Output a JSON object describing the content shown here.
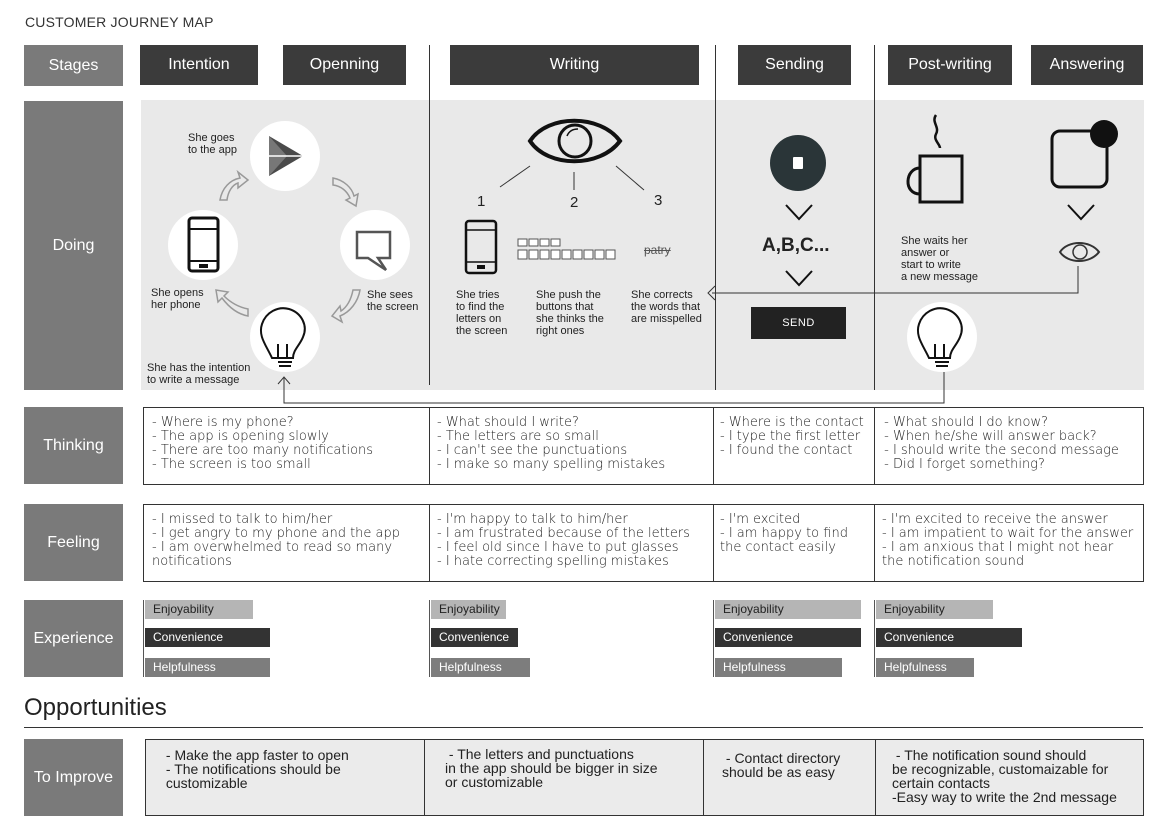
{
  "title": "CUSTOMER JOURNEY MAP",
  "rows": {
    "stages": "Stages",
    "doing": "Doing",
    "thinking": "Thinking",
    "feeling": "Feeling",
    "experience": "Experience",
    "to_improve": "To Improve"
  },
  "stages": [
    "Intention",
    "Openning",
    "Writing",
    "Sending",
    "Post-writing",
    "Answering"
  ],
  "doing": {
    "goes_app": "She goes\nto the app",
    "sees_screen": "She sees\nthe screen",
    "opens_phone": "She opens\nher phone",
    "intention": "She has the intention\nto write a message",
    "n1": "1",
    "n2": "2",
    "n3": "3",
    "tries": "She tries\nto find the\nletters on\nthe screen",
    "push": "She push the\nbuttons that\nshe thinks the\nright ones",
    "corrects": "She corrects\nthe words that\nare misspelled",
    "patry": "patry",
    "abc": "A,B,C...",
    "send": "SEND",
    "waits": "She waits her\nanswer or\nstart to write\na new message"
  },
  "thinking": [
    [
      "- Where is my phone?",
      "- The app is opening slowly",
      "- There are too many notifications",
      "- The screen is too small"
    ],
    [
      "- What should I write?",
      "- The letters are so small",
      "- I can't see the punctuations",
      "- I make so many spelling mistakes"
    ],
    [
      "- Where is the contact",
      "- I type the first letter",
      "- I found the contact"
    ],
    [
      " - What should I do know?",
      " - When he/she will answer back?",
      " - I should write the second message",
      " - Did I forget something?"
    ]
  ],
  "feeling": [
    [
      "- I missed to talk to him/her",
      "- I get angry to my phone and the app",
      "- I am overwhelmed to read so many",
      "notifications"
    ],
    [
      "- I'm happy to talk to him/her",
      "- I am frustrated because of the letters",
      "- I feel old since I have to put glasses",
      "- I hate correcting spelling mistakes"
    ],
    [
      "- I'm excited",
      "- I am happy to find",
      "the contact easily"
    ],
    [
      "- I'm excited to receive the answer",
      "- I am impatient to wait for the answer",
      "- I am anxious that I might not hear",
      "the notification sound"
    ]
  ],
  "experience": {
    "labels": [
      "Enjoyability",
      "Convenience",
      "Helpfulness"
    ],
    "colors": {
      "enjoyability": "#b5b5b5",
      "convenience": "#333333",
      "helpfulness": "#7d7d7d"
    }
  },
  "opportunities": "Opportunities",
  "improve": [
    [
      " - Make the app faster to open",
      " - The notifications should be",
      " customizable"
    ],
    [
      " - The letters and punctuations",
      "in the app should be bigger in size",
      "or customizable"
    ],
    [
      " - Contact directory",
      "should be as easy"
    ],
    [
      " - The notification sound should",
      "be recognizable, customaizable for",
      "certain contacts",
      "-Easy way to write the 2nd message"
    ]
  ]
}
